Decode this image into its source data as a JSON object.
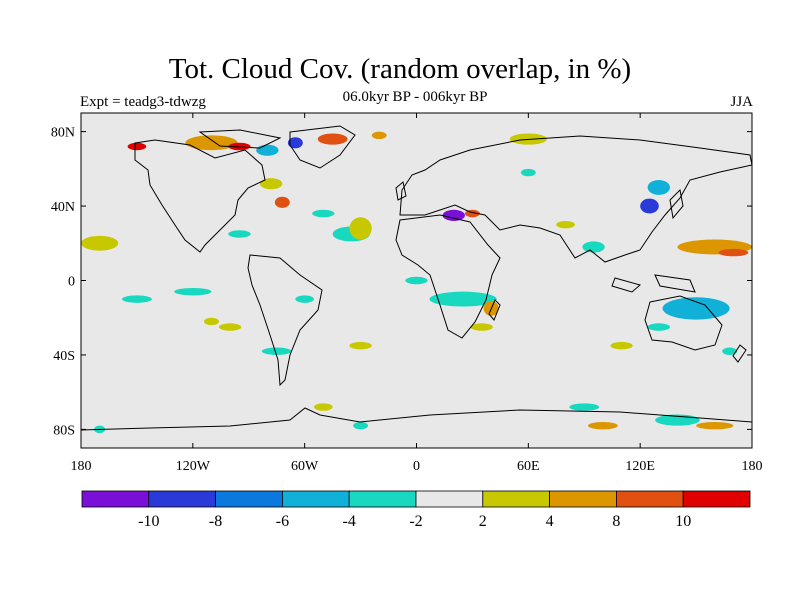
{
  "title": "Tot. Cloud Cov. (random overlap, in %)",
  "subtitle": "06.0kyr BP - 006kyr BP",
  "experiment": "Expt = teadg3-tdwzg",
  "season": "JJA",
  "y_ticks": [
    {
      "lat": 80,
      "label": "80N"
    },
    {
      "lat": 40,
      "label": "40N"
    },
    {
      "lat": 0,
      "label": "0"
    },
    {
      "lat": -40,
      "label": "40S"
    },
    {
      "lat": -80,
      "label": "80S"
    }
  ],
  "x_ticks": [
    {
      "lon": -180,
      "label": "180"
    },
    {
      "lon": -120,
      "label": "120W"
    },
    {
      "lon": -60,
      "label": "60W"
    },
    {
      "lon": 0,
      "label": "0"
    },
    {
      "lon": 60,
      "label": "60E"
    },
    {
      "lon": 120,
      "label": "120E"
    },
    {
      "lon": 180,
      "label": "180"
    }
  ],
  "colorbar": {
    "colors": [
      "#7a10d8",
      "#2a3ad8",
      "#0a78dc",
      "#10b0d8",
      "#18d8c0",
      "#e8e8e8",
      "#c8c800",
      "#dc9600",
      "#e05010",
      "#e00000"
    ],
    "labels": [
      "-10",
      "-8",
      "-6",
      "-4",
      "-2",
      "2",
      "4",
      "8",
      "10"
    ]
  },
  "colors": {
    "ocean": "#e8e8e8",
    "coast": "#000000"
  },
  "anomalies": [
    {
      "lon": -170,
      "lat": 20,
      "rx": 10,
      "ry": 4,
      "color": "#c8c800"
    },
    {
      "lon": -150,
      "lat": -10,
      "rx": 8,
      "ry": 2,
      "color": "#18d8c0"
    },
    {
      "lon": -120,
      "lat": -6,
      "rx": 10,
      "ry": 2,
      "color": "#18d8c0"
    },
    {
      "lon": -110,
      "lat": -22,
      "rx": 4,
      "ry": 2,
      "color": "#c8c800"
    },
    {
      "lon": -95,
      "lat": 25,
      "rx": 6,
      "ry": 2,
      "color": "#18d8c0"
    },
    {
      "lon": -72,
      "lat": 42,
      "rx": 4,
      "ry": 3,
      "color": "#e05010"
    },
    {
      "lon": -78,
      "lat": 52,
      "rx": 6,
      "ry": 3,
      "color": "#c8c800"
    },
    {
      "lon": -150,
      "lat": 72,
      "rx": 5,
      "ry": 2,
      "color": "#e00000"
    },
    {
      "lon": -110,
      "lat": 74,
      "rx": 14,
      "ry": 4,
      "color": "#dc9600"
    },
    {
      "lon": -95,
      "lat": 72,
      "rx": 6,
      "ry": 2,
      "color": "#e00000"
    },
    {
      "lon": -80,
      "lat": 70,
      "rx": 6,
      "ry": 3,
      "color": "#10b0d8"
    },
    {
      "lon": -45,
      "lat": 76,
      "rx": 8,
      "ry": 3,
      "color": "#e05010"
    },
    {
      "lon": -65,
      "lat": 74,
      "rx": 4,
      "ry": 3,
      "color": "#2a3ad8"
    },
    {
      "lon": -20,
      "lat": 78,
      "rx": 4,
      "ry": 2,
      "color": "#dc9600"
    },
    {
      "lon": -35,
      "lat": 25,
      "rx": 10,
      "ry": 4,
      "color": "#18d8c0"
    },
    {
      "lon": -30,
      "lat": 28,
      "rx": 6,
      "ry": 6,
      "color": "#c8c800"
    },
    {
      "lon": -50,
      "lat": 36,
      "rx": 6,
      "ry": 2,
      "color": "#18d8c0"
    },
    {
      "lon": -60,
      "lat": -10,
      "rx": 5,
      "ry": 2,
      "color": "#18d8c0"
    },
    {
      "lon": -100,
      "lat": -25,
      "rx": 6,
      "ry": 2,
      "color": "#c8c800"
    },
    {
      "lon": -75,
      "lat": -38,
      "rx": 8,
      "ry": 2,
      "color": "#18d8c0"
    },
    {
      "lon": -30,
      "lat": -35,
      "rx": 6,
      "ry": 2,
      "color": "#c8c800"
    },
    {
      "lon": 0,
      "lat": 0,
      "rx": 6,
      "ry": 2,
      "color": "#18d8c0"
    },
    {
      "lon": 25,
      "lat": -10,
      "rx": 18,
      "ry": 4,
      "color": "#18d8c0"
    },
    {
      "lon": 40,
      "lat": -15,
      "rx": 4,
      "ry": 4,
      "color": "#dc9600"
    },
    {
      "lon": 35,
      "lat": -25,
      "rx": 6,
      "ry": 2,
      "color": "#c8c800"
    },
    {
      "lon": 20,
      "lat": 35,
      "rx": 6,
      "ry": 3,
      "color": "#7a10d8"
    },
    {
      "lon": 30,
      "lat": 36,
      "rx": 4,
      "ry": 2,
      "color": "#e05010"
    },
    {
      "lon": 60,
      "lat": 76,
      "rx": 10,
      "ry": 3,
      "color": "#c8c800"
    },
    {
      "lon": 60,
      "lat": 58,
      "rx": 4,
      "ry": 2,
      "color": "#18d8c0"
    },
    {
      "lon": 80,
      "lat": 30,
      "rx": 5,
      "ry": 2,
      "color": "#c8c800"
    },
    {
      "lon": 95,
      "lat": 18,
      "rx": 6,
      "ry": 3,
      "color": "#18d8c0"
    },
    {
      "lon": 125,
      "lat": 40,
      "rx": 5,
      "ry": 4,
      "color": "#2a3ad8"
    },
    {
      "lon": 130,
      "lat": 50,
      "rx": 6,
      "ry": 4,
      "color": "#10b0d8"
    },
    {
      "lon": 160,
      "lat": 18,
      "rx": 20,
      "ry": 4,
      "color": "#dc9600"
    },
    {
      "lon": 170,
      "lat": 15,
      "rx": 8,
      "ry": 2,
      "color": "#e05010"
    },
    {
      "lon": 150,
      "lat": -15,
      "rx": 18,
      "ry": 6,
      "color": "#10b0d8"
    },
    {
      "lon": 130,
      "lat": -25,
      "rx": 6,
      "ry": 2,
      "color": "#18d8c0"
    },
    {
      "lon": 110,
      "lat": -35,
      "rx": 6,
      "ry": 2,
      "color": "#c8c800"
    },
    {
      "lon": 168,
      "lat": -38,
      "rx": 4,
      "ry": 2,
      "color": "#18d8c0"
    },
    {
      "lon": 100,
      "lat": -78,
      "rx": 8,
      "ry": 2,
      "color": "#dc9600"
    },
    {
      "lon": 140,
      "lat": -75,
      "rx": 12,
      "ry": 3,
      "color": "#18d8c0"
    },
    {
      "lon": 160,
      "lat": -78,
      "rx": 10,
      "ry": 2,
      "color": "#dc9600"
    },
    {
      "lon": 90,
      "lat": -68,
      "rx": 8,
      "ry": 2,
      "color": "#18d8c0"
    },
    {
      "lon": -50,
      "lat": -68,
      "rx": 5,
      "ry": 2,
      "color": "#c8c800"
    },
    {
      "lon": -30,
      "lat": -78,
      "rx": 4,
      "ry": 2,
      "color": "#18d8c0"
    },
    {
      "lon": -170,
      "lat": -80,
      "rx": 3,
      "ry": 2,
      "color": "#18d8c0"
    }
  ]
}
